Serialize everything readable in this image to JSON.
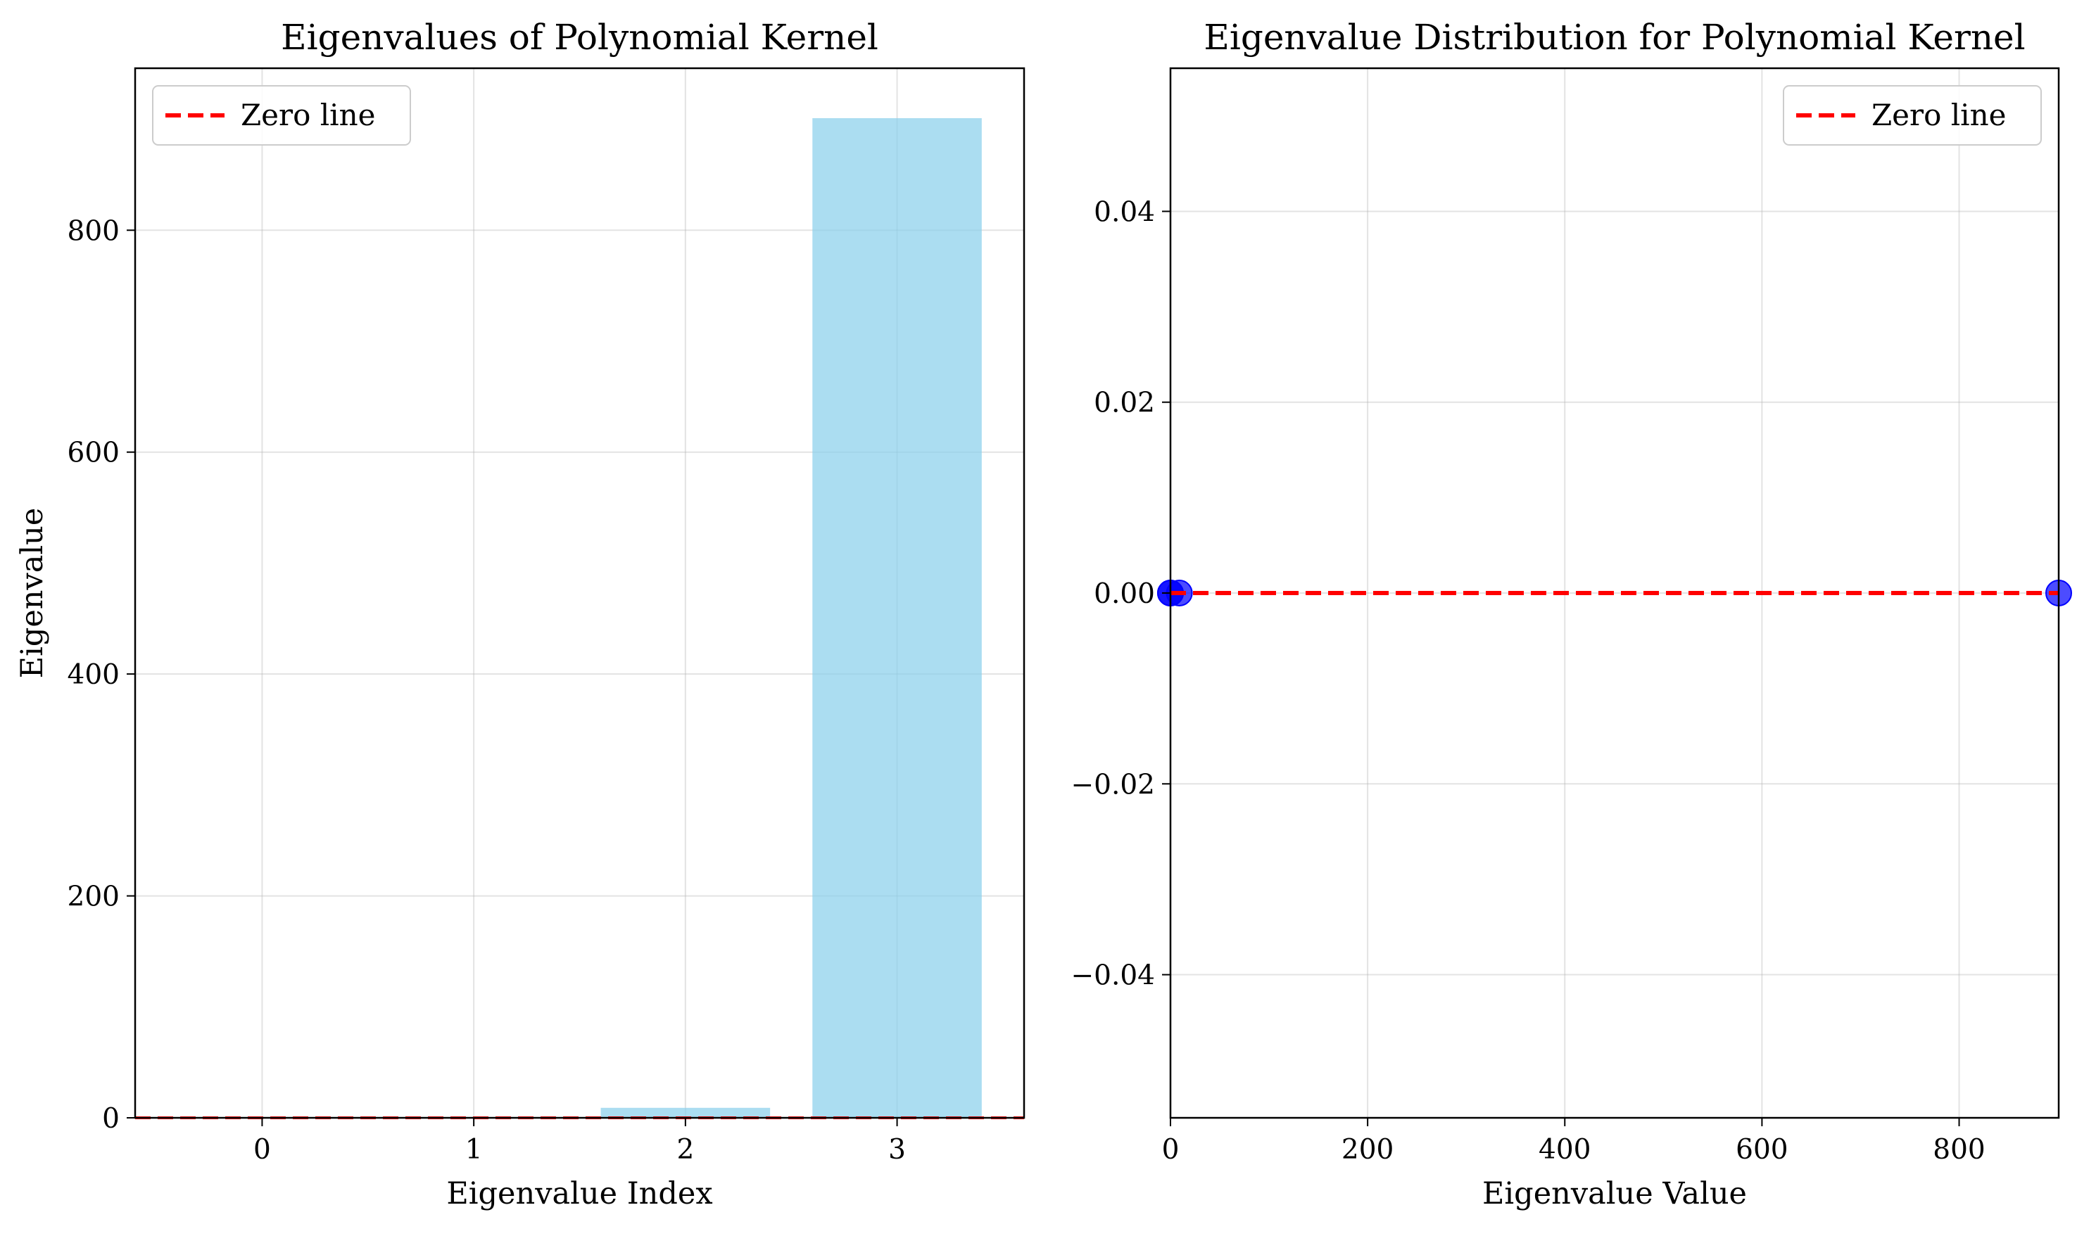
{
  "chart_data": [
    {
      "type": "bar",
      "title": "Eigenvalues of Polynomial Kernel",
      "xlabel": "Eigenvalue Index",
      "ylabel": "Eigenvalue",
      "categories": [
        "0",
        "1",
        "2",
        "3"
      ],
      "x": [
        0,
        1,
        2,
        3
      ],
      "values": [
        0,
        0,
        9,
        901
      ],
      "xlim": [
        -0.6,
        3.6
      ],
      "ylim": [
        0,
        946
      ],
      "xticks": [
        "0",
        "1",
        "2",
        "3"
      ],
      "yticks": [
        "0",
        "200",
        "400",
        "600",
        "800"
      ],
      "reference_line": {
        "y": 0,
        "label": "Zero line",
        "color": "#ff0000",
        "style": "dashed"
      },
      "bar_color": "#87ceeb",
      "grid": true,
      "legend": {
        "position": "top-left",
        "entries": [
          "Zero line"
        ]
      }
    },
    {
      "type": "scatter",
      "title": "Eigenvalue Distribution for Polynomial Kernel",
      "xlabel": "Eigenvalue Value",
      "ylabel": "",
      "x": [
        0,
        0,
        9,
        901
      ],
      "y": [
        0,
        0,
        0,
        0
      ],
      "xlim": [
        0,
        901
      ],
      "ylim": [
        -0.055,
        0.055
      ],
      "xticks": [
        "0",
        "200",
        "400",
        "600",
        "800"
      ],
      "yticks": [
        "−0.04",
        "−0.02",
        "0.00",
        "0.02",
        "0.04"
      ],
      "reference_line": {
        "y": 0,
        "label": "Zero line",
        "color": "#ff0000",
        "style": "dashed"
      },
      "point_color": "#0000ff",
      "grid": true,
      "legend": {
        "position": "top-right",
        "entries": [
          "Zero line"
        ]
      }
    }
  ]
}
